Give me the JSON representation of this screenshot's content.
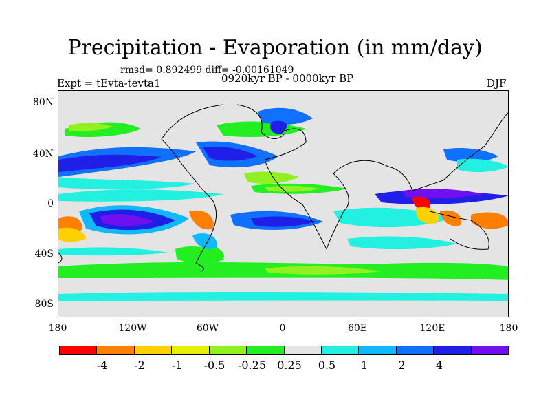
{
  "title": "Precipitation - Evaporation (in mm/day)",
  "stats": "rmsd= 0.892499 diff= -0.00161049",
  "experiment": "Expt = tEvta-tevta1",
  "period": "0920kyr BP - 0000kyr BP",
  "season": "DJF",
  "lat_labels": [
    "80N",
    "40N",
    "0",
    "40S",
    "80S"
  ],
  "lon_labels": [
    "180",
    "120W",
    "60W",
    "0",
    "60E",
    "120E",
    "180"
  ],
  "colorbar": {
    "colors": [
      "#ff0000",
      "#ff8000",
      "#ffd000",
      "#e8f000",
      "#90f020",
      "#22ee22",
      "#e4e4e4",
      "#22f0e0",
      "#10b8ff",
      "#1070ff",
      "#1f1fe8",
      "#7010f0"
    ],
    "labels": [
      "-4",
      "-2",
      "-1",
      "-0.5",
      "-0.25",
      "0.25",
      "0.5",
      "1",
      "2",
      "4"
    ]
  }
}
